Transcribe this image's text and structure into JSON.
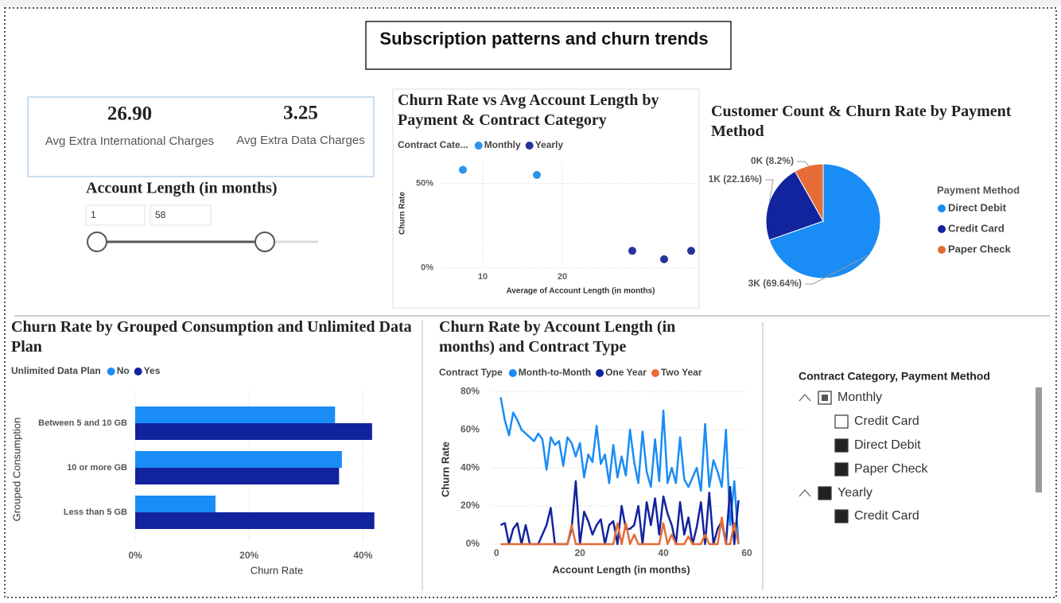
{
  "page_title": "Subscription patterns and churn trends",
  "cards": [
    {
      "value": "26.90",
      "label": "Avg Extra International Charges"
    },
    {
      "value": "3.25",
      "label": "Avg Extra Data Charges"
    }
  ],
  "slider": {
    "title": "Account Length (in months)",
    "min": 1,
    "max": 58
  },
  "slicer": {
    "title": "Contract Category, Payment Method",
    "items": [
      {
        "label": "Monthly",
        "state": "partial",
        "children": [
          {
            "label": "Credit Card",
            "state": "off"
          },
          {
            "label": "Direct Debit",
            "state": "on"
          },
          {
            "label": "Paper Check",
            "state": "on"
          }
        ]
      },
      {
        "label": "Yearly",
        "state": "on",
        "children": [
          {
            "label": "Credit Card",
            "state": "on"
          }
        ]
      }
    ]
  },
  "chart_data": [
    {
      "type": "scatter",
      "title": "Churn Rate vs Avg Account Length by Payment & Contract Category",
      "legend_title": "Contract Cate...",
      "x_label": "Average of Account Length (in months)",
      "y_label": "Churn Rate",
      "series": [
        {
          "name": "Monthly",
          "color": "#2e93ea",
          "x": [
            7.5,
            16.8
          ],
          "values": [
            58,
            55
          ]
        },
        {
          "name": "Yearly",
          "color": "#26339a",
          "x": [
            28.8,
            32.8,
            36.2
          ],
          "values": [
            10,
            5,
            10
          ]
        }
      ],
      "xlim": [
        4,
        37
      ],
      "xticks": [
        10,
        20
      ],
      "ylim": [
        -4,
        62
      ],
      "yticks": [
        {
          "value": 0,
          "label": "0%"
        },
        {
          "value": 50,
          "label": "50%"
        }
      ],
      "grid": true
    },
    {
      "type": "pie",
      "title": "Customer Count & Churn Rate by Payment Method",
      "legend_title": "Payment Method",
      "categories": [
        "Direct Debit",
        "Credit Card",
        "Paper Check"
      ],
      "values": [
        69.64,
        22.16,
        8.2
      ],
      "value_labels": [
        "3K (69.64%)",
        "1K (22.16%)",
        "0K (8.2%)"
      ],
      "colors": [
        "#1a8cf5",
        "#12239e",
        "#e66c37"
      ]
    },
    {
      "type": "hbar",
      "title": "Churn Rate by Grouped Consumption and Unlimited Data Plan",
      "legend_title": "Unlimited Data Plan",
      "x_label": "Churn Rate",
      "y_label": "Grouped Consumption",
      "categories": [
        "Between 5 and 10 GB",
        "10 or more GB",
        "Less than 5 GB"
      ],
      "series": [
        {
          "name": "No",
          "color": "#1a8cf5",
          "values": [
            35.1,
            36.3,
            14.1
          ]
        },
        {
          "name": "Yes",
          "color": "#12239e",
          "values": [
            41.6,
            35.8,
            42.0
          ]
        }
      ],
      "xlim": [
        0,
        44
      ],
      "xticks": [
        {
          "value": 0,
          "label": "0%"
        },
        {
          "value": 20,
          "label": "20%"
        },
        {
          "value": 40,
          "label": "40%"
        }
      ],
      "grid": true
    },
    {
      "type": "line",
      "title": "Churn Rate by Account Length (in months) and Contract Type",
      "legend_title": "Contract Type",
      "x_label": "Account Length (in months)",
      "y_label": "Churn Rate",
      "x": [
        1,
        2,
        3,
        4,
        5,
        6,
        7,
        8,
        9,
        10,
        11,
        12,
        13,
        14,
        15,
        16,
        17,
        18,
        19,
        20,
        21,
        22,
        23,
        24,
        25,
        26,
        27,
        28,
        29,
        30,
        31,
        32,
        33,
        34,
        35,
        36,
        37,
        38,
        39,
        40,
        41,
        42,
        43,
        44,
        45,
        46,
        47,
        48,
        49,
        50,
        51,
        52,
        53,
        54,
        55,
        56,
        57,
        58
      ],
      "series": [
        {
          "name": "Month-to-Month",
          "color": "#1a8cf5",
          "values": [
            77,
            65,
            57,
            69,
            65,
            60,
            58,
            56,
            54,
            58,
            55,
            39,
            56,
            52,
            54,
            41,
            56,
            53,
            46,
            53,
            35,
            47,
            43,
            62,
            42,
            47,
            32,
            52,
            35,
            46,
            36,
            60,
            43,
            32,
            59,
            38,
            30,
            55,
            33,
            70,
            32,
            40,
            32,
            56,
            34,
            30,
            35,
            40,
            28,
            63,
            30,
            44,
            38,
            30,
            60,
            10,
            33,
            0
          ]
        },
        {
          "name": "One Year",
          "color": "#12239e",
          "values": [
            10,
            11,
            0,
            8,
            11,
            0,
            10,
            0,
            0,
            0,
            5,
            10,
            19,
            0,
            0,
            0,
            0,
            8,
            33,
            0,
            17,
            12,
            5,
            10,
            13,
            0,
            10,
            12,
            0,
            20,
            8,
            8,
            10,
            20,
            0,
            22,
            10,
            24,
            5,
            25,
            16,
            10,
            0,
            22,
            5,
            14,
            0,
            9,
            22,
            0,
            27,
            0,
            8,
            12,
            0,
            30,
            0,
            23
          ]
        },
        {
          "name": "Two Year",
          "color": "#e66c37",
          "values": [
            0,
            0,
            0,
            0,
            0,
            0,
            0,
            0,
            0,
            0,
            0,
            0,
            0,
            0,
            0,
            0,
            0,
            10,
            0,
            0,
            0,
            0,
            0,
            0,
            0,
            0,
            0,
            0,
            11,
            0,
            11,
            0,
            5,
            0,
            0,
            0,
            0,
            0,
            0,
            11,
            0,
            5,
            0,
            0,
            0,
            4,
            0,
            0,
            0,
            5,
            0,
            0,
            0,
            14,
            0,
            0,
            11,
            0
          ]
        }
      ],
      "xlim": [
        -1,
        60
      ],
      "xticks": [
        0,
        20,
        40,
        60
      ],
      "ylim": [
        0,
        83
      ],
      "yticks": [
        {
          "value": 0,
          "label": "0%"
        },
        {
          "value": 20,
          "label": "20%"
        },
        {
          "value": 40,
          "label": "40%"
        },
        {
          "value": 60,
          "label": "60%"
        },
        {
          "value": 80,
          "label": "80%"
        }
      ],
      "grid": true
    }
  ]
}
